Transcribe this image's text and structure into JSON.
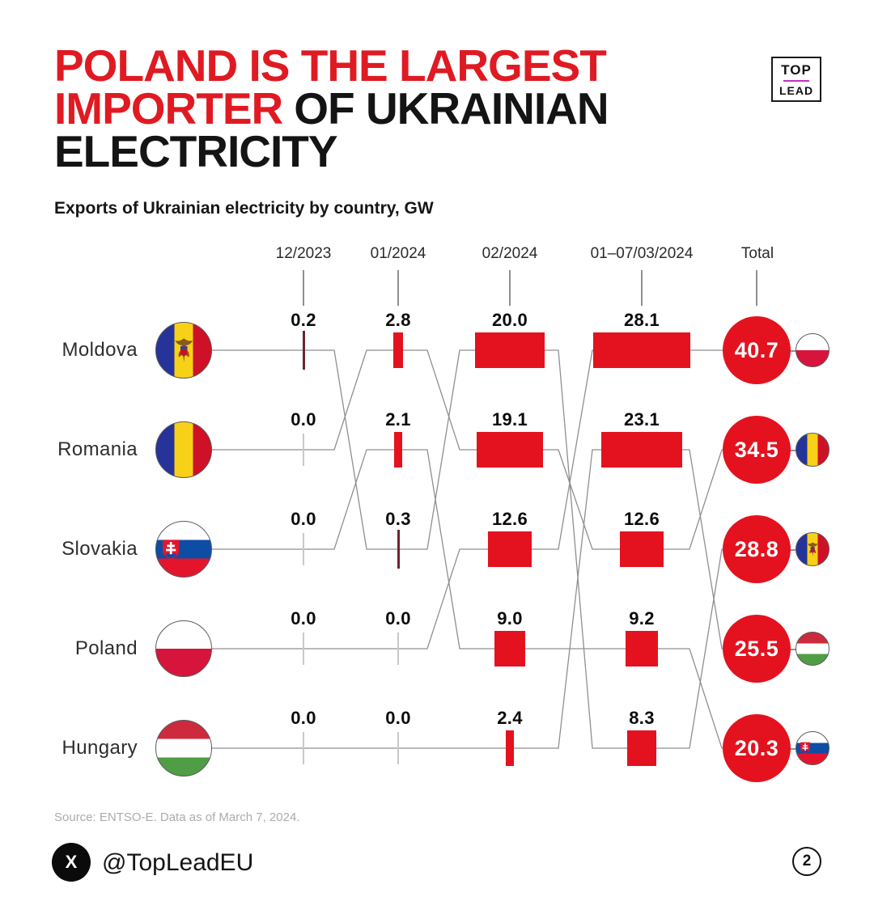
{
  "page": {
    "title_line1": "POLAND IS THE LARGEST",
    "title_line2_red": "IMPORTER",
    "title_line2_black": "OF UKRAINIAN",
    "title_line3": "ELECTRICITY",
    "subtitle": "Exports of Ukrainian electricity by country, GW",
    "logo": {
      "top": "TOP",
      "lead": "LEAD"
    },
    "source": "Source: ENTSO-E. Data as of March 7, 2024.",
    "x_icon": "X",
    "handle": "@TopLeadEU",
    "page_number": "2"
  },
  "colors": {
    "red": "#E4121E",
    "title_red": "#E01A22",
    "tick_maroon": "#6E2430",
    "tick_gray": "#C9C9C9",
    "line_gray": "#8F8F8F",
    "logo_magenta": "#C12FC1"
  },
  "chart_data": {
    "type": "bar",
    "variant": "ranked bump chart with proportional bars",
    "title": "Poland is the largest importer of Ukrainian electricity",
    "subtitle": "Exports of Ukrainian electricity by country, GW",
    "unit": "GW",
    "columns": [
      "12/2023",
      "01/2024",
      "02/2024",
      "01–07/03/2024",
      "Total"
    ],
    "row_labels": [
      "Moldova",
      "Romania",
      "Slovakia",
      "Poland",
      "Hungary"
    ],
    "grid_values_by_row_position": [
      [
        "0.2",
        "2.8",
        "20.0",
        "28.1"
      ],
      [
        "0.0",
        "2.1",
        "19.1",
        "23.1"
      ],
      [
        "0.0",
        "0.3",
        "12.6",
        "12.6"
      ],
      [
        "0.0",
        "0.0",
        "9.0",
        "9.2"
      ],
      [
        "0.0",
        "0.0",
        "2.4",
        "8.3"
      ]
    ],
    "series": [
      {
        "name": "Moldova",
        "flag": "moldova",
        "values": [
          0.2,
          0.3,
          20.0,
          8.3
        ],
        "ranks": [
          1,
          3,
          1,
          5
        ],
        "total": 28.8,
        "total_rank": 3
      },
      {
        "name": "Romania",
        "flag": "romania",
        "values": [
          0.0,
          2.8,
          19.1,
          12.6
        ],
        "ranks": [
          2,
          1,
          2,
          3
        ],
        "total": 34.5,
        "total_rank": 2
      },
      {
        "name": "Slovakia",
        "flag": "slovakia",
        "values": [
          0.0,
          2.1,
          9.0,
          9.2
        ],
        "ranks": [
          3,
          2,
          4,
          4
        ],
        "total": 20.3,
        "total_rank": 5
      },
      {
        "name": "Poland",
        "flag": "poland",
        "values": [
          0.0,
          0.0,
          12.6,
          28.1
        ],
        "ranks": [
          4,
          4,
          3,
          1
        ],
        "total": 40.7,
        "total_rank": 1
      },
      {
        "name": "Hungary",
        "flag": "hungary",
        "values": [
          0.0,
          0.0,
          2.4,
          23.1
        ],
        "ranks": [
          5,
          5,
          5,
          2
        ],
        "total": 25.5,
        "total_rank": 4
      }
    ],
    "totals_sorted": [
      {
        "value": "40.7",
        "flag": "poland"
      },
      {
        "value": "34.5",
        "flag": "romania"
      },
      {
        "value": "28.8",
        "flag": "moldova"
      },
      {
        "value": "25.5",
        "flag": "hungary"
      },
      {
        "value": "20.3",
        "flag": "slovakia"
      }
    ]
  }
}
